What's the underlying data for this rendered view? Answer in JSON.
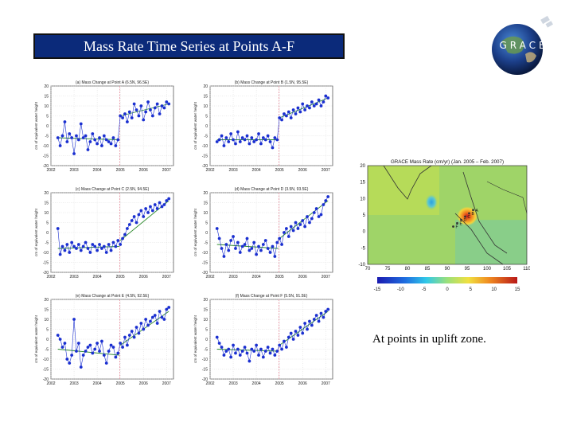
{
  "slide": {
    "title": "Mass Rate Time Series at Points A-F",
    "logo_text": "GRACE",
    "caption": "At points in uplift zone."
  },
  "colors": {
    "title_bg": "#0b2a7a",
    "marker": "#1a2fd0",
    "line": "#1a2fd0",
    "fit_pre": "#2e8b2e",
    "fit_post": "#2e8b2e",
    "event_line": "#e58a9a"
  },
  "chart_data": [
    {
      "type": "line",
      "title": "(a) Mass Change at Point A (6.5N, 96.5E)",
      "ylabel": "cm of equivalent water height",
      "xticks": [
        "2002",
        "2003",
        "2004",
        "2005",
        "2006",
        "2007"
      ],
      "yticks": [
        "20",
        "15",
        "10",
        "5",
        "0",
        "-5",
        "-10",
        "-15",
        "-20"
      ],
      "xlim": [
        2002,
        2007.3
      ],
      "ylim": [
        -20,
        20
      ],
      "event_x": 2004.98,
      "x": [
        2002.3,
        2002.4,
        2002.5,
        2002.6,
        2002.7,
        2002.8,
        2002.9,
        2003.0,
        2003.1,
        2003.2,
        2003.3,
        2003.4,
        2003.5,
        2003.6,
        2003.7,
        2003.8,
        2003.9,
        2004.0,
        2004.1,
        2004.2,
        2004.3,
        2004.4,
        2004.5,
        2004.6,
        2004.7,
        2004.8,
        2004.9,
        2005.0,
        2005.1,
        2005.2,
        2005.3,
        2005.4,
        2005.5,
        2005.6,
        2005.7,
        2005.8,
        2005.9,
        2006.0,
        2006.1,
        2006.2,
        2006.3,
        2006.4,
        2006.5,
        2006.6,
        2006.7,
        2006.8,
        2006.9,
        2007.0,
        2007.1
      ],
      "y": [
        -6,
        -10,
        -5,
        2,
        -8,
        -4,
        -6,
        -14,
        -5,
        -7,
        1,
        -6,
        -5,
        -12,
        -8,
        -4,
        -7,
        -9,
        -6,
        -10,
        -5,
        -7,
        -8,
        -9,
        -6,
        -10,
        -7,
        5,
        4,
        6,
        2,
        7,
        4,
        11,
        8,
        5,
        10,
        3,
        7,
        12,
        8,
        5,
        9,
        11,
        6,
        10,
        9,
        12,
        11
      ],
      "fit_pre": [
        [
          2002.3,
          -6
        ],
        [
          2004.95,
          -7
        ]
      ],
      "fit_post": [
        [
          2005.0,
          5
        ],
        [
          2007.1,
          11
        ]
      ]
    },
    {
      "type": "line",
      "title": "(b) Mass Change at Point B (1.5N, 95.5E)",
      "ylabel": "cm of equivalent water height",
      "xticks": [
        "2002",
        "2003",
        "2004",
        "2005",
        "2006",
        "2007"
      ],
      "yticks": [
        "20",
        "15",
        "10",
        "5",
        "0",
        "-5",
        "-10",
        "-15",
        "-20"
      ],
      "xlim": [
        2002,
        2007.3
      ],
      "ylim": [
        -20,
        20
      ],
      "event_x": 2004.98,
      "x": [
        2002.3,
        2002.4,
        2002.5,
        2002.6,
        2002.7,
        2002.8,
        2002.9,
        2003.0,
        2003.1,
        2003.2,
        2003.3,
        2003.4,
        2003.5,
        2003.6,
        2003.7,
        2003.8,
        2003.9,
        2004.0,
        2004.1,
        2004.2,
        2004.3,
        2004.4,
        2004.5,
        2004.6,
        2004.7,
        2004.8,
        2004.9,
        2005.0,
        2005.1,
        2005.2,
        2005.3,
        2005.4,
        2005.5,
        2005.6,
        2005.7,
        2005.8,
        2005.9,
        2006.0,
        2006.1,
        2006.2,
        2006.3,
        2006.4,
        2006.5,
        2006.6,
        2006.7,
        2006.8,
        2006.9,
        2007.0,
        2007.1
      ],
      "y": [
        -8,
        -7,
        -5,
        -10,
        -6,
        -8,
        -4,
        -7,
        -9,
        -3,
        -8,
        -6,
        -7,
        -5,
        -9,
        -6,
        -8,
        -7,
        -4,
        -9,
        -6,
        -7,
        -5,
        -8,
        -11,
        -6,
        -7,
        4,
        3,
        6,
        5,
        7,
        4,
        8,
        6,
        9,
        7,
        11,
        8,
        10,
        9,
        12,
        10,
        11,
        13,
        10,
        12,
        15,
        14
      ],
      "fit_pre": [
        [
          2002.3,
          -7
        ],
        [
          2004.95,
          -7
        ]
      ],
      "fit_post": [
        [
          2005.0,
          4
        ],
        [
          2007.1,
          14
        ]
      ]
    },
    {
      "type": "line",
      "title": "(c) Mass Change at Point C (2.5N, 94.5E)",
      "ylabel": "cm of equivalent water height",
      "xticks": [
        "2002",
        "2003",
        "2004",
        "2005",
        "2006",
        "2007"
      ],
      "yticks": [
        "20",
        "15",
        "10",
        "5",
        "0",
        "-5",
        "-10",
        "-15",
        "-20"
      ],
      "xlim": [
        2002,
        2007.3
      ],
      "ylim": [
        -20,
        20
      ],
      "event_x": 2004.98,
      "x": [
        2002.3,
        2002.4,
        2002.5,
        2002.6,
        2002.7,
        2002.8,
        2002.9,
        2003.0,
        2003.1,
        2003.2,
        2003.3,
        2003.4,
        2003.5,
        2003.6,
        2003.7,
        2003.8,
        2003.9,
        2004.0,
        2004.1,
        2004.2,
        2004.3,
        2004.4,
        2004.5,
        2004.6,
        2004.7,
        2004.8,
        2004.9,
        2005.0,
        2005.1,
        2005.2,
        2005.3,
        2005.4,
        2005.5,
        2005.6,
        2005.7,
        2005.8,
        2005.9,
        2006.0,
        2006.1,
        2006.2,
        2006.3,
        2006.4,
        2006.5,
        2006.6,
        2006.7,
        2006.8,
        2006.9,
        2007.0,
        2007.1
      ],
      "y": [
        2,
        -11,
        -7,
        -9,
        -6,
        -10,
        -5,
        -7,
        -8,
        -6,
        -9,
        -7,
        -5,
        -8,
        -10,
        -6,
        -7,
        -9,
        -6,
        -8,
        -7,
        -10,
        -6,
        -9,
        -5,
        -7,
        -4,
        -6,
        -3,
        -1,
        2,
        4,
        6,
        8,
        5,
        9,
        11,
        8,
        12,
        10,
        13,
        11,
        14,
        12,
        15,
        13,
        14,
        16,
        17
      ],
      "fit_pre": [
        [
          2002.3,
          -8
        ],
        [
          2004.95,
          -7
        ]
      ],
      "fit_post": [
        [
          2005.0,
          -4
        ],
        [
          2007.1,
          16
        ]
      ]
    },
    {
      "type": "line",
      "title": "(d) Mass Change at Point D (3.5N, 93.5E)",
      "ylabel": "cm of equivalent water height",
      "xticks": [
        "2002",
        "2003",
        "2004",
        "2005",
        "2006",
        "2007"
      ],
      "yticks": [
        "20",
        "15",
        "10",
        "5",
        "0",
        "-5",
        "-10",
        "-15",
        "-20"
      ],
      "xlim": [
        2002,
        2007.3
      ],
      "ylim": [
        -20,
        20
      ],
      "event_x": 2004.98,
      "x": [
        2002.3,
        2002.4,
        2002.5,
        2002.6,
        2002.7,
        2002.8,
        2002.9,
        2003.0,
        2003.1,
        2003.2,
        2003.3,
        2003.4,
        2003.5,
        2003.6,
        2003.7,
        2003.8,
        2003.9,
        2004.0,
        2004.1,
        2004.2,
        2004.3,
        2004.4,
        2004.5,
        2004.6,
        2004.7,
        2004.8,
        2004.9,
        2005.0,
        2005.1,
        2005.2,
        2005.3,
        2005.4,
        2005.5,
        2005.6,
        2005.7,
        2005.8,
        2005.9,
        2006.0,
        2006.1,
        2006.2,
        2006.3,
        2006.4,
        2006.5,
        2006.6,
        2006.7,
        2006.8,
        2006.9,
        2007.0,
        2007.1
      ],
      "y": [
        2,
        -3,
        -8,
        -12,
        -6,
        -9,
        -4,
        -2,
        -8,
        -5,
        -10,
        -7,
        -6,
        -3,
        -9,
        -8,
        -5,
        -11,
        -7,
        -9,
        -6,
        -4,
        -8,
        -10,
        -7,
        -12,
        -5,
        -3,
        -6,
        0,
        2,
        -2,
        3,
        1,
        5,
        2,
        4,
        6,
        3,
        8,
        5,
        7,
        10,
        12,
        8,
        9,
        14,
        16,
        18
      ],
      "fit_pre": [
        [
          2002.3,
          -6
        ],
        [
          2004.95,
          -8
        ]
      ],
      "fit_post": [
        [
          2005.0,
          -3
        ],
        [
          2007.1,
          16
        ]
      ]
    },
    {
      "type": "line",
      "title": "(e) Mass Change at Point E (4.5N, 92.5E)",
      "ylabel": "cm of equivalent water height",
      "xticks": [
        "2002",
        "2003",
        "2004",
        "2005",
        "2006",
        "2007"
      ],
      "yticks": [
        "20",
        "15",
        "10",
        "5",
        "0",
        "-5",
        "-10",
        "-15",
        "-20"
      ],
      "xlim": [
        2002,
        2007.3
      ],
      "ylim": [
        -20,
        20
      ],
      "event_x": 2004.98,
      "x": [
        2002.3,
        2002.4,
        2002.5,
        2002.6,
        2002.7,
        2002.8,
        2002.9,
        2003.0,
        2003.1,
        2003.2,
        2003.3,
        2003.4,
        2003.5,
        2003.6,
        2003.7,
        2003.8,
        2003.9,
        2004.0,
        2004.1,
        2004.2,
        2004.3,
        2004.4,
        2004.5,
        2004.6,
        2004.7,
        2004.8,
        2004.9,
        2005.0,
        2005.1,
        2005.2,
        2005.3,
        2005.4,
        2005.5,
        2005.6,
        2005.7,
        2005.8,
        2005.9,
        2006.0,
        2006.1,
        2006.2,
        2006.3,
        2006.4,
        2006.5,
        2006.6,
        2006.7,
        2006.8,
        2006.9,
        2007.0,
        2007.1
      ],
      "y": [
        2,
        0,
        -4,
        -2,
        -10,
        -12,
        -8,
        10,
        -6,
        -2,
        -14,
        -8,
        -6,
        -4,
        -3,
        -7,
        -5,
        -2,
        -6,
        -1,
        -8,
        -12,
        -6,
        -3,
        -4,
        -9,
        -7,
        -2,
        -4,
        1,
        -3,
        2,
        4,
        1,
        6,
        3,
        8,
        5,
        10,
        7,
        9,
        11,
        12,
        8,
        14,
        11,
        10,
        15,
        16
      ],
      "fit_pre": [
        [
          2002.3,
          -5
        ],
        [
          2004.95,
          -8
        ]
      ],
      "fit_post": [
        [
          2005.0,
          -3
        ],
        [
          2007.1,
          14
        ]
      ]
    },
    {
      "type": "line",
      "title": "(f) Mass Change at Point F (5.5N, 91.5E)",
      "ylabel": "cm of equivalent water height",
      "xticks": [
        "2002",
        "2003",
        "2004",
        "2005",
        "2006",
        "2007"
      ],
      "yticks": [
        "20",
        "15",
        "10",
        "5",
        "0",
        "-5",
        "-10",
        "-15",
        "-20"
      ],
      "xlim": [
        2002,
        2007.3
      ],
      "ylim": [
        -20,
        20
      ],
      "event_x": 2004.98,
      "x": [
        2002.3,
        2002.4,
        2002.5,
        2002.6,
        2002.7,
        2002.8,
        2002.9,
        2003.0,
        2003.1,
        2003.2,
        2003.3,
        2003.4,
        2003.5,
        2003.6,
        2003.7,
        2003.8,
        2003.9,
        2004.0,
        2004.1,
        2004.2,
        2004.3,
        2004.4,
        2004.5,
        2004.6,
        2004.7,
        2004.8,
        2004.9,
        2005.0,
        2005.1,
        2005.2,
        2005.3,
        2005.4,
        2005.5,
        2005.6,
        2005.7,
        2005.8,
        2005.9,
        2006.0,
        2006.1,
        2006.2,
        2006.3,
        2006.4,
        2006.5,
        2006.6,
        2006.7,
        2006.8,
        2006.9,
        2007.0,
        2007.1
      ],
      "y": [
        1,
        -2,
        -4,
        -8,
        -6,
        -5,
        -9,
        -3,
        -7,
        -5,
        -8,
        -6,
        -4,
        -7,
        -11,
        -5,
        -6,
        -3,
        -8,
        -5,
        -9,
        -6,
        -4,
        -7,
        -5,
        -8,
        -6,
        -3,
        -5,
        -1,
        -4,
        1,
        3,
        0,
        4,
        2,
        6,
        3,
        8,
        5,
        9,
        7,
        10,
        12,
        9,
        13,
        11,
        14,
        15
      ],
      "fit_pre": [
        [
          2002.3,
          -5
        ],
        [
          2004.95,
          -6
        ]
      ],
      "fit_post": [
        [
          2005.0,
          -3
        ],
        [
          2007.1,
          14
        ]
      ]
    },
    {
      "type": "heatmap",
      "title": "GRACE Mass Rate (cm/yr) (Jan. 2005 – Feb. 2007)",
      "xticks": [
        "70",
        "75",
        "80",
        "85",
        "90",
        "95",
        "100",
        "105",
        "110"
      ],
      "yticks": [
        "20",
        "15",
        "10",
        "5",
        "0",
        "-5",
        "-10"
      ],
      "xlim": [
        70,
        110
      ],
      "ylim": [
        -10,
        20
      ],
      "colorbar_ticks": [
        "-15",
        "-10",
        "-5",
        "0",
        "5",
        "10",
        "15"
      ],
      "colorbar_range": [
        -15,
        15
      ],
      "point_labels": [
        "A",
        "B",
        "C",
        "D",
        "E",
        "F"
      ]
    }
  ]
}
